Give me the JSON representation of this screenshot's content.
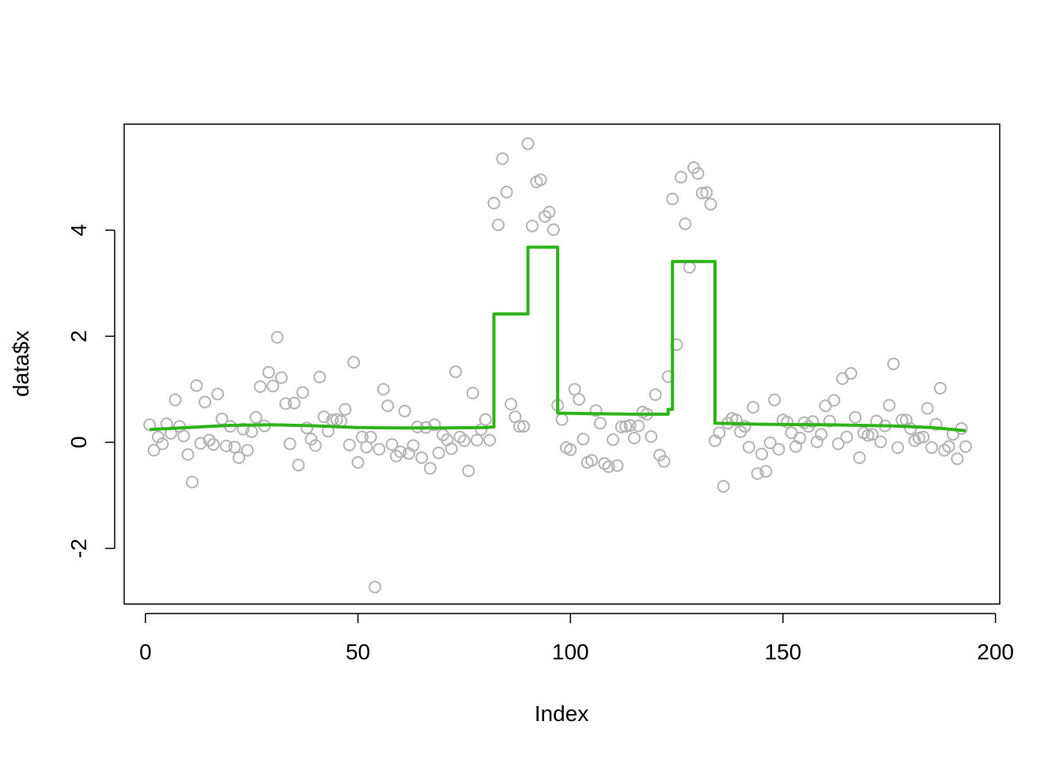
{
  "chart_data": {
    "type": "scatter",
    "title": "",
    "xlabel": "Index",
    "ylabel": "data$x",
    "xlim": [
      -5,
      201
    ],
    "ylim": [
      -3.05,
      6.0
    ],
    "xticks": [
      0,
      50,
      100,
      150,
      200
    ],
    "yticks": [
      -2,
      0,
      2,
      4
    ],
    "grid": false,
    "legend": "none",
    "colors": {
      "points": "#b3b3b3",
      "fit": "#2db417"
    },
    "series": [
      {
        "type": "scatter",
        "x": [
          1,
          2,
          3,
          4,
          5,
          6,
          7,
          8,
          9,
          10,
          11,
          12,
          13,
          14,
          15,
          16,
          17,
          18,
          19,
          20,
          21,
          22,
          23,
          24,
          25,
          26,
          27,
          28,
          29,
          30,
          31,
          32,
          33,
          34,
          35,
          36,
          37,
          38,
          39,
          40,
          41,
          42,
          43,
          44,
          45,
          46,
          47,
          48,
          49,
          50,
          51,
          52,
          53,
          54,
          55,
          56,
          57,
          58,
          59,
          60,
          61,
          62,
          63,
          64,
          65,
          66,
          67,
          68,
          69,
          70,
          71,
          72,
          73,
          74,
          75,
          76,
          77,
          78,
          79,
          80,
          81,
          82,
          83,
          84,
          85,
          86,
          87,
          88,
          89,
          90,
          91,
          92,
          93,
          94,
          95,
          96,
          97,
          98,
          99,
          100,
          101,
          102,
          103,
          104,
          105,
          106,
          107,
          108,
          109,
          110,
          111,
          112,
          113,
          114,
          115,
          116,
          117,
          118,
          119,
          120,
          121,
          122,
          123,
          124,
          125,
          126,
          127,
          128,
          129,
          130,
          131,
          132,
          133,
          134,
          135,
          136,
          137,
          138,
          139,
          140,
          141,
          142,
          143,
          144,
          145,
          146,
          147,
          148,
          149,
          150,
          151,
          152,
          153,
          154,
          155,
          156,
          157,
          158,
          159,
          160,
          161,
          162,
          163,
          164,
          165,
          166,
          167,
          168,
          169,
          170,
          171,
          172,
          173,
          174,
          175,
          176,
          177,
          178,
          179,
          180,
          181,
          182,
          183,
          184,
          185,
          186,
          187,
          188,
          189,
          190,
          191,
          192,
          193
        ],
        "y": [
          0.33,
          -0.15,
          0.1,
          -0.03,
          0.35,
          0.17,
          0.8,
          0.3,
          0.12,
          -0.23,
          -0.75,
          1.07,
          -0.02,
          0.76,
          0.04,
          -0.04,
          0.91,
          0.44,
          -0.07,
          0.3,
          -0.09,
          -0.29,
          0.25,
          -0.15,
          0.2,
          0.47,
          1.05,
          0.31,
          1.32,
          1.06,
          1.98,
          1.22,
          0.73,
          -0.03,
          0.74,
          -0.43,
          0.94,
          0.27,
          0.06,
          -0.06,
          1.23,
          0.48,
          0.21,
          0.42,
          0.43,
          0.4,
          0.62,
          -0.05,
          1.51,
          -0.38,
          0.1,
          -0.09,
          0.1,
          -2.73,
          -0.13,
          1.0,
          0.69,
          -0.04,
          -0.26,
          -0.18,
          0.59,
          -0.21,
          -0.06,
          0.29,
          -0.29,
          0.28,
          -0.49,
          0.33,
          -0.2,
          0.14,
          0.05,
          -0.12,
          1.33,
          0.1,
          0.03,
          -0.54,
          0.93,
          0.04,
          0.24,
          0.43,
          0.04,
          4.51,
          4.1,
          5.35,
          4.72,
          0.72,
          0.48,
          0.3,
          0.3,
          5.63,
          4.08,
          4.91,
          4.95,
          4.26,
          4.34,
          4.01,
          0.7,
          0.43,
          -0.1,
          -0.14,
          1.0,
          0.81,
          0.06,
          -0.38,
          -0.34,
          0.6,
          0.36,
          -0.4,
          -0.46,
          0.05,
          -0.44,
          0.29,
          0.3,
          0.32,
          0.08,
          0.31,
          0.57,
          0.53,
          0.11,
          0.9,
          -0.24,
          -0.36,
          1.24,
          4.59,
          1.84,
          5.0,
          4.12,
          3.3,
          5.18,
          5.07,
          4.7,
          4.71,
          4.49,
          0.03,
          0.18,
          -0.83,
          0.36,
          0.45,
          0.42,
          0.2,
          0.3,
          -0.09,
          0.66,
          -0.59,
          -0.22,
          -0.55,
          -0.01,
          0.8,
          -0.13,
          0.42,
          0.38,
          0.18,
          -0.08,
          0.08,
          0.37,
          0.3,
          0.39,
          0.01,
          0.15,
          0.69,
          0.4,
          0.79,
          -0.03,
          1.2,
          0.1,
          1.3,
          0.47,
          -0.29,
          0.18,
          0.13,
          0.15,
          0.4,
          0.01,
          0.31,
          0.7,
          1.48,
          -0.1,
          0.42,
          0.42,
          0.26,
          0.03,
          0.08,
          0.1,
          0.64,
          -0.1,
          0.34,
          1.02,
          -0.15,
          -0.08,
          0.15,
          -0.31,
          0.26,
          -0.08
        ]
      },
      {
        "type": "line",
        "x": [
          1,
          10,
          20,
          30,
          40,
          50,
          60,
          70,
          80,
          82,
          82,
          90,
          90,
          97,
          97,
          105,
          115,
          123,
          123,
          124,
          124,
          134,
          134,
          145,
          160,
          175,
          185,
          193
        ],
        "y": [
          0.24,
          0.28,
          0.32,
          0.33,
          0.31,
          0.28,
          0.27,
          0.27,
          0.28,
          0.29,
          2.42,
          2.42,
          3.68,
          3.68,
          0.55,
          0.54,
          0.53,
          0.53,
          0.62,
          0.62,
          3.41,
          3.41,
          0.36,
          0.34,
          0.33,
          0.31,
          0.28,
          0.22
        ]
      }
    ]
  }
}
